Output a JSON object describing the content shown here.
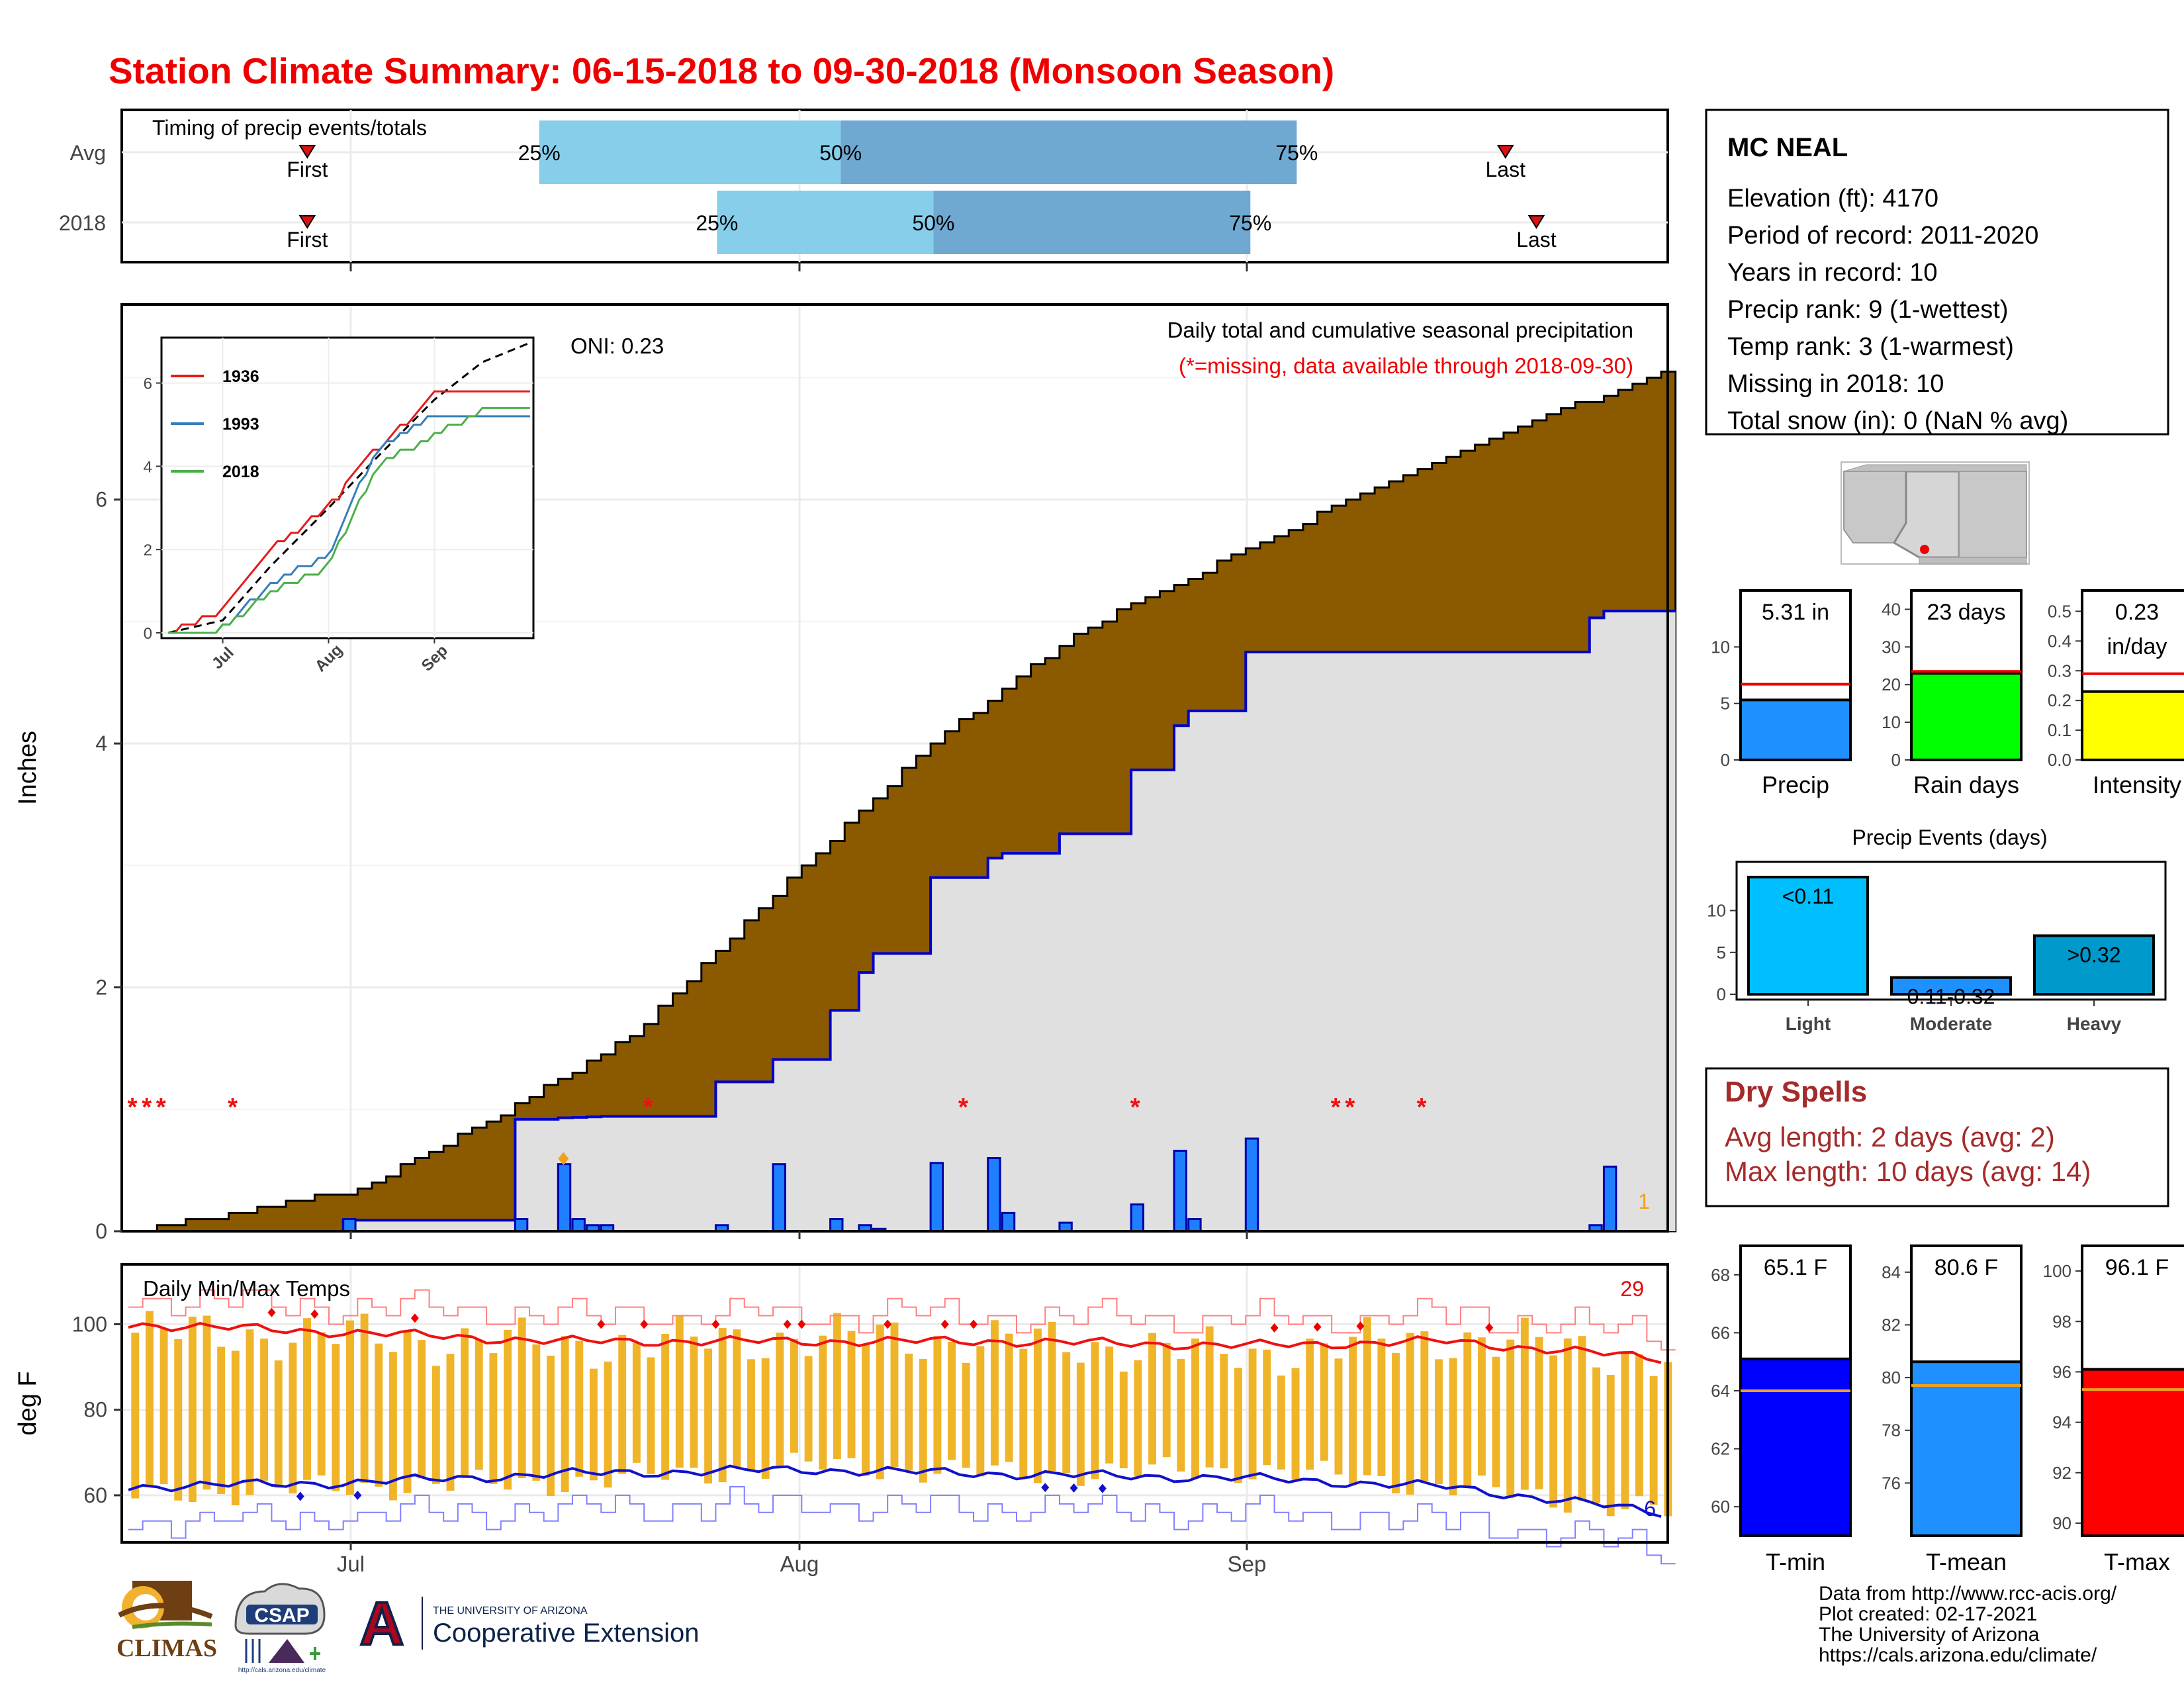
{
  "title": "Station Climate Summary: 06-15-2018 to 09-30-2018 (Monsoon Season)",
  "timing": {
    "label": "Timing of precip events/totals",
    "rows": [
      {
        "name": "Avg",
        "first_label": "First",
        "last_label": "Last",
        "first": 0.12,
        "p25": 0.27,
        "p50": 0.465,
        "p75": 0.76,
        "last": 0.895
      },
      {
        "name": "2018",
        "first_label": "First",
        "last_label": "Last",
        "first": 0.12,
        "p25": 0.385,
        "p50": 0.525,
        "p75": 0.73,
        "last": 0.915
      }
    ],
    "pct_labels": [
      "25%",
      "50%",
      "75%"
    ],
    "colors": {
      "light": "#87ceeb",
      "dark": "#6fa8d0",
      "marker": "#dd1111"
    }
  },
  "precip_panel": {
    "ylabel": "Inches",
    "yticks": [
      "0",
      "2",
      "4",
      "6"
    ],
    "oni": "ONI: 0.23",
    "header1": "Daily total and cumulative seasonal precipitation",
    "header2": "(*=missing, data available through 2018-09-30)",
    "missing_marker": "*",
    "count_label": "1",
    "colors": {
      "avg_fill": "#8b5a00",
      "obs_fill": "#e0e0e0",
      "obs_line": "#0000cc",
      "bar": "#1e7fff",
      "missing": "#ee1111"
    }
  },
  "inset": {
    "yticks": [
      "0",
      "2",
      "4",
      "6"
    ],
    "xticks": [
      "Jul",
      "Aug",
      "Sep"
    ],
    "legend": [
      {
        "name": "1936",
        "color": "#e41a1c"
      },
      {
        "name": "1993",
        "color": "#377eb8"
      },
      {
        "name": "2018",
        "color": "#4daf4a"
      }
    ]
  },
  "temp_panel": {
    "title": "Daily Min/Max Temps",
    "ylabel": "deg F",
    "yticks": [
      "60",
      "80",
      "100"
    ],
    "count_max": "29",
    "count_min": "6",
    "colors": {
      "bar": "#f0b429",
      "max": "#ee1111",
      "min": "#1111cc",
      "record_max": "#ff8080",
      "record_min": "#8080ff"
    }
  },
  "x_axis": {
    "ticks": [
      "Jul",
      "Aug",
      "Sep"
    ]
  },
  "station": {
    "name": "MC NEAL",
    "lines": [
      "Elevation (ft): 4170",
      "Period of record: 2011-2020",
      "Years in record: 10",
      "Precip rank: 9 (1-wettest)",
      "Temp rank: 3 (1-warmest)",
      "Missing in 2018: 10",
      "Total snow (in): 0 (NaN % avg)"
    ]
  },
  "mini_bars": [
    {
      "label": "Precip",
      "value_text": "5.31 in",
      "value": 5.31,
      "avg": 6.7,
      "ymax": 15,
      "yticks": [
        "0",
        "5",
        "10"
      ],
      "tick_vals": [
        0,
        5,
        10
      ],
      "color": "#1e90ff"
    },
    {
      "label": "Rain days",
      "value_text": "23 days",
      "value": 23,
      "avg": 23.5,
      "ymax": 45,
      "yticks": [
        "0",
        "10",
        "20",
        "30",
        "40"
      ],
      "tick_vals": [
        0,
        10,
        20,
        30,
        40
      ],
      "color": "#00ff00"
    },
    {
      "label": "Intensity",
      "value_text": "0.23\nin/day",
      "value": 0.23,
      "avg": 0.29,
      "ymax": 0.57,
      "yticks": [
        "0.0",
        "0.1",
        "0.2",
        "0.3",
        "0.4",
        "0.5"
      ],
      "tick_vals": [
        0,
        0.1,
        0.2,
        0.3,
        0.4,
        0.5
      ],
      "color": "#ffff00"
    }
  ],
  "events": {
    "title": "Precip Events (days)",
    "yticks": [
      "0",
      "5",
      "10"
    ],
    "bars": [
      {
        "label": "Light",
        "value": 14,
        "text": "<0.11",
        "color": "#00bfff"
      },
      {
        "label": "Moderate",
        "value": 2,
        "text": "0.11-0.32",
        "color": "#1e90ff"
      },
      {
        "label": "Heavy",
        "value": 7,
        "text": ">0.32",
        "color": "#0099cc"
      }
    ]
  },
  "dry_spells": {
    "title": "Dry Spells",
    "avg": "Avg length: 2 days (avg: 2)",
    "max": "Max length: 10 days (avg: 14)"
  },
  "temp_bars": [
    {
      "label": "T-min",
      "value_text": "65.1 F",
      "value": 65.1,
      "avg": 64.0,
      "ymin": 59,
      "ymax": 69,
      "yticks": [
        "60",
        "62",
        "64",
        "66",
        "68"
      ],
      "tick_vals": [
        60,
        62,
        64,
        66,
        68
      ],
      "color": "#0000ff"
    },
    {
      "label": "T-mean",
      "value_text": "80.6 F",
      "value": 80.6,
      "avg": 79.7,
      "ymin": 74,
      "ymax": 85,
      "yticks": [
        "76",
        "78",
        "80",
        "82",
        "84"
      ],
      "tick_vals": [
        76,
        78,
        80,
        82,
        84
      ],
      "color": "#1e90ff"
    },
    {
      "label": "T-max",
      "value_text": "96.1 F",
      "value": 96.1,
      "avg": 95.3,
      "ymin": 89.5,
      "ymax": 101,
      "yticks": [
        "90",
        "92",
        "94",
        "96",
        "98",
        "100"
      ],
      "tick_vals": [
        90,
        92,
        94,
        96,
        98,
        100
      ],
      "color": "#ff0000"
    }
  ],
  "footer": [
    "Data from http://www.rcc-acis.org/",
    "Plot created: 02-17-2021",
    "The University of Arizona",
    "https://cals.arizona.edu/climate/"
  ],
  "logos": {
    "climas": "CLIMAS",
    "csap": "CSAP",
    "csap_url": "http://cals.arizona.edu/climate",
    "ua_letter": "A",
    "ua_line1": "THE UNIVERSITY OF ARIZONA",
    "ua_line2": "Cooperative Extension"
  },
  "chart_data": [
    {
      "type": "bar",
      "title": "Timing of precip events/totals",
      "categories": [
        "Avg",
        "2018"
      ],
      "series": [
        {
          "name": "First",
          "values": [
            "06-26",
            "06-26"
          ]
        },
        {
          "name": "25%",
          "values": [
            "07-14",
            "07-27"
          ]
        },
        {
          "name": "50%",
          "values": [
            "08-05",
            "08-03"
          ]
        },
        {
          "name": "75%",
          "values": [
            "09-05",
            "09-01"
          ]
        },
        {
          "name": "Last",
          "values": [
            "09-20",
            "09-22"
          ]
        }
      ]
    },
    {
      "type": "area",
      "title": "Daily total and cumulative seasonal precipitation",
      "ylabel": "Inches",
      "ylim": [
        0,
        7.6
      ],
      "x": [
        "06-15",
        "06-25",
        "07-01",
        "07-10",
        "07-20",
        "08-01",
        "08-10",
        "08-20",
        "09-01",
        "09-10",
        "09-20",
        "09-30"
      ],
      "series": [
        {
          "values": [
            0.0,
            0.2,
            0.35,
            0.9,
            1.6,
            3.0,
            4.0,
            4.9,
            5.6,
            6.1,
            6.6,
            7.05
          ]
        },
        {
          "values": [
            0.0,
            0.09,
            0.09,
            0.91,
            0.95,
            1.5,
            2.9,
            3.3,
            4.75,
            4.75,
            4.75,
            5.31
          ]
        }
      ],
      "daily_precip": [
        {
          "date": "06-30",
          "value": 0.1
        },
        {
          "date": "07-12",
          "value": 0.1
        },
        {
          "date": "07-15",
          "value": 0.55
        },
        {
          "date": "07-16",
          "value": 0.1
        },
        {
          "date": "07-17",
          "value": 0.05
        },
        {
          "date": "07-18",
          "value": 0.05
        },
        {
          "date": "07-26",
          "value": 0.05
        },
        {
          "date": "07-30",
          "value": 0.55
        },
        {
          "date": "08-03",
          "value": 0.1
        },
        {
          "date": "08-05",
          "value": 0.05
        },
        {
          "date": "08-06",
          "value": 0.02
        },
        {
          "date": "08-10",
          "value": 0.56
        },
        {
          "date": "08-14",
          "value": 0.6
        },
        {
          "date": "08-15",
          "value": 0.15
        },
        {
          "date": "08-19",
          "value": 0.07
        },
        {
          "date": "08-24",
          "value": 0.22
        },
        {
          "date": "08-27",
          "value": 0.66
        },
        {
          "date": "08-28",
          "value": 0.1
        },
        {
          "date": "09-01",
          "value": 0.76
        },
        {
          "date": "09-25",
          "value": 0.05
        },
        {
          "date": "09-26",
          "value": 0.53
        }
      ],
      "missing_dates": [
        "06-15",
        "06-16",
        "06-17",
        "06-22",
        "07-21",
        "08-12",
        "08-24",
        "09-07",
        "09-08",
        "09-13"
      ]
    },
    {
      "type": "line",
      "title": "",
      "ylim": [
        0,
        6.9
      ],
      "x": [
        "06-15",
        "07-01",
        "07-15",
        "08-01",
        "08-15",
        "09-01",
        "09-15",
        "09-30"
      ],
      "series": [
        {
          "name": "",
          "values": [
            0.0,
            0.3,
            1.6,
            3.0,
            4.2,
            5.6,
            6.5,
            7.0
          ]
        },
        {
          "name": "1936",
          "values": [
            0.0,
            0.5,
            2.0,
            3.0,
            4.4,
            5.7,
            5.7,
            5.7
          ]
        },
        {
          "name": "1993",
          "values": [
            0.0,
            0.1,
            1.2,
            1.9,
            4.4,
            5.3,
            5.3,
            5.3
          ]
        },
        {
          "name": "2018",
          "values": [
            0.0,
            0.1,
            0.95,
            1.6,
            4.0,
            4.75,
            5.31,
            5.31
          ]
        }
      ]
    },
    {
      "type": "bar",
      "title": "Daily Min/Max Temps",
      "ylabel": "deg F",
      "ylim": [
        49,
        114
      ],
      "x": [
        "06-15",
        "07-01",
        "07-15",
        "08-01",
        "08-15",
        "09-01",
        "09-15",
        "09-30"
      ],
      "series": [
        {
          "name": "Tmax",
          "values": [
            98,
            97,
            95,
            97,
            96,
            93,
            97,
            92
          ]
        },
        {
          "name": "Tmin",
          "values": [
            60,
            62,
            63,
            67,
            65,
            66,
            62,
            56
          ]
        },
        {
          "name": "Avg Tmax",
          "values": [
            100,
            98,
            96,
            96,
            96,
            95,
            96,
            92
          ]
        },
        {
          "name": "Avg Tmin",
          "values": [
            62,
            63,
            65,
            66,
            65,
            64,
            62,
            56
          ]
        }
      ]
    },
    {
      "type": "bar",
      "title": "",
      "categories": [
        "Precip",
        "Rain days",
        "Intensity"
      ],
      "series": [
        {
          "name": "2018",
          "values": [
            5.31,
            23,
            0.23
          ]
        },
        {
          "name": "Avg",
          "values": [
            6.7,
            23.5,
            0.29
          ]
        }
      ]
    },
    {
      "type": "bar",
      "title": "Precip Events (days)",
      "categories": [
        "Light",
        "Moderate",
        "Heavy"
      ],
      "values": [
        14,
        2,
        7
      ],
      "ylim": [
        0,
        15
      ]
    },
    {
      "type": "bar",
      "title": "",
      "categories": [
        "T-min",
        "T-mean",
        "T-max"
      ],
      "series": [
        {
          "name": "2018",
          "values": [
            65.1,
            80.6,
            96.1
          ]
        },
        {
          "name": "Avg",
          "values": [
            64.0,
            79.7,
            95.3
          ]
        }
      ]
    }
  ]
}
